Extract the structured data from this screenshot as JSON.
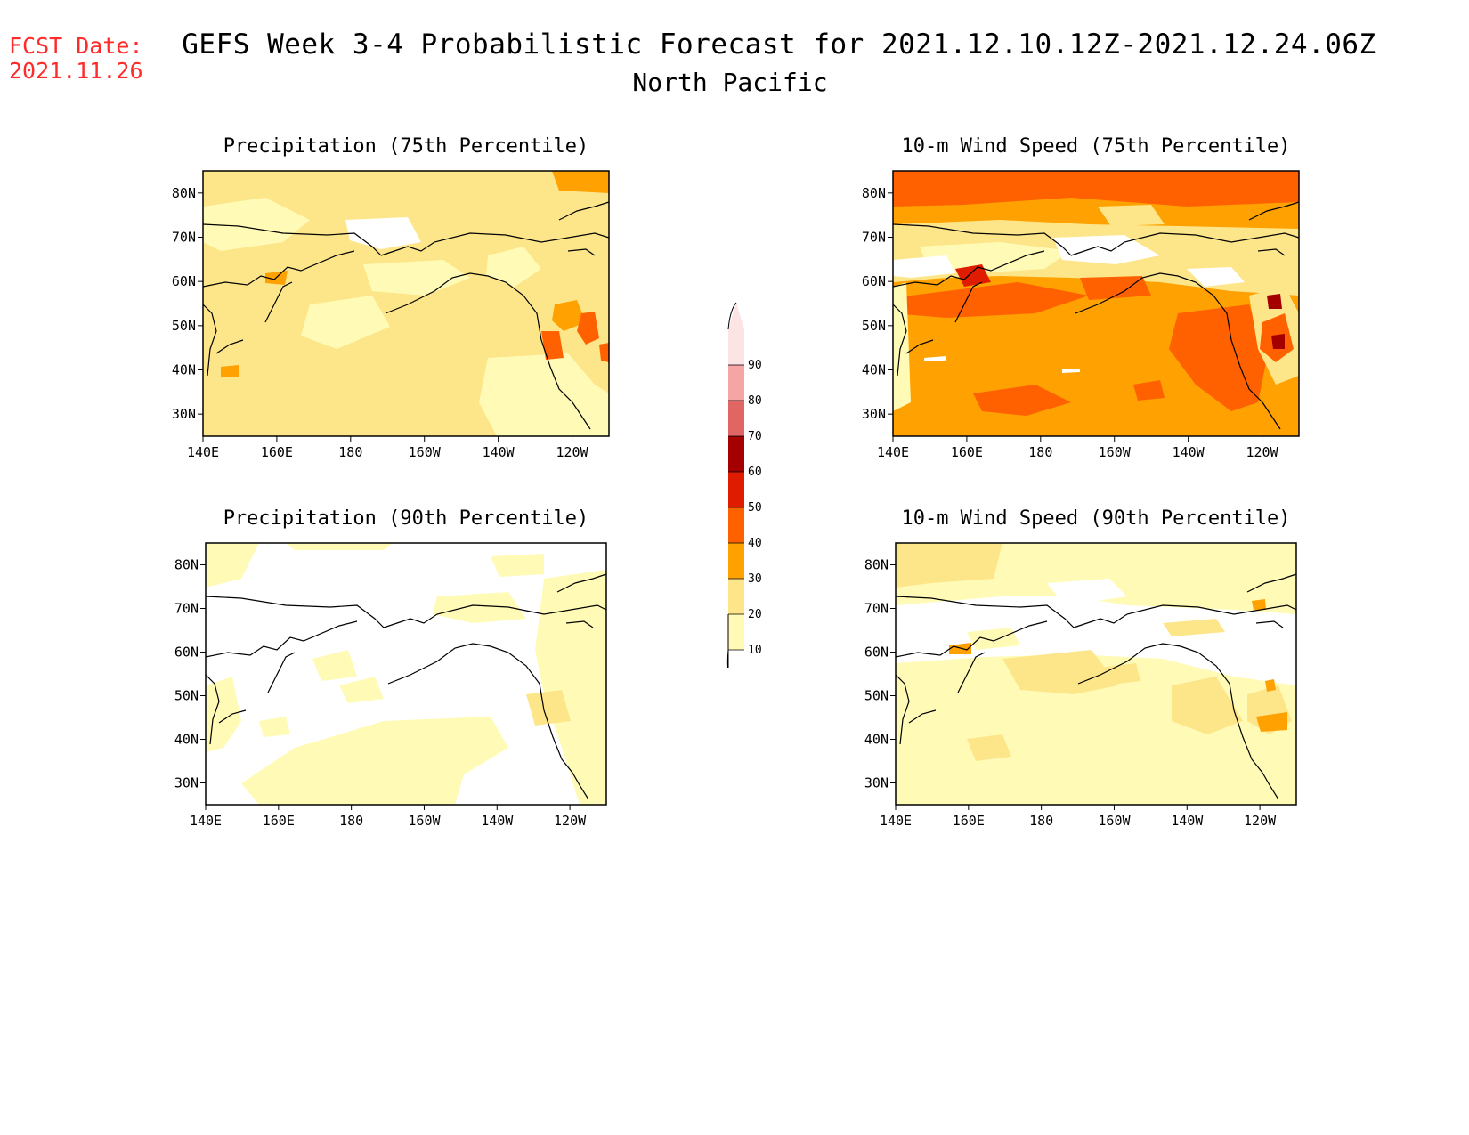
{
  "header": {
    "fcst_label": "FCST Date:",
    "fcst_date": "2021.11.26",
    "title": "GEFS Week 3-4 Probabilistic Forecast for 2021.12.10.12Z-2021.12.24.06Z",
    "region": "North Pacific"
  },
  "axes": {
    "lat_labels": [
      "80N",
      "70N",
      "60N",
      "50N",
      "40N",
      "30N"
    ],
    "lon_labels": [
      "140E",
      "160E",
      "180",
      "160W",
      "140W",
      "120W"
    ]
  },
  "colorbar": {
    "levels": [
      10,
      20,
      30,
      40,
      50,
      60,
      70,
      80,
      90
    ],
    "colors": [
      "#fffbb6",
      "#fde68a",
      "#ffa100",
      "#ff6000",
      "#e01c00",
      "#a50000",
      "#e06666",
      "#f4a6a6",
      "#fde4e4"
    ]
  },
  "chart_data": [
    {
      "type": "heatmap",
      "title": "Precipitation (75th Percentile)",
      "lat_range": [
        25,
        85
      ],
      "lon_range": [
        140,
        250
      ],
      "dominant_range": "20-30"
    },
    {
      "type": "heatmap",
      "title": "10-m Wind Speed (75th Percentile)",
      "lat_range": [
        25,
        85
      ],
      "lon_range": [
        140,
        250
      ],
      "dominant_range": "30-40"
    },
    {
      "type": "heatmap",
      "title": "Precipitation (90th Percentile)",
      "lat_range": [
        25,
        85
      ],
      "lon_range": [
        140,
        250
      ],
      "dominant_range": "10-20"
    },
    {
      "type": "heatmap",
      "title": "10-m Wind Speed (90th Percentile)",
      "lat_range": [
        25,
        85
      ],
      "lon_range": [
        140,
        250
      ],
      "dominant_range": "10-20"
    }
  ]
}
